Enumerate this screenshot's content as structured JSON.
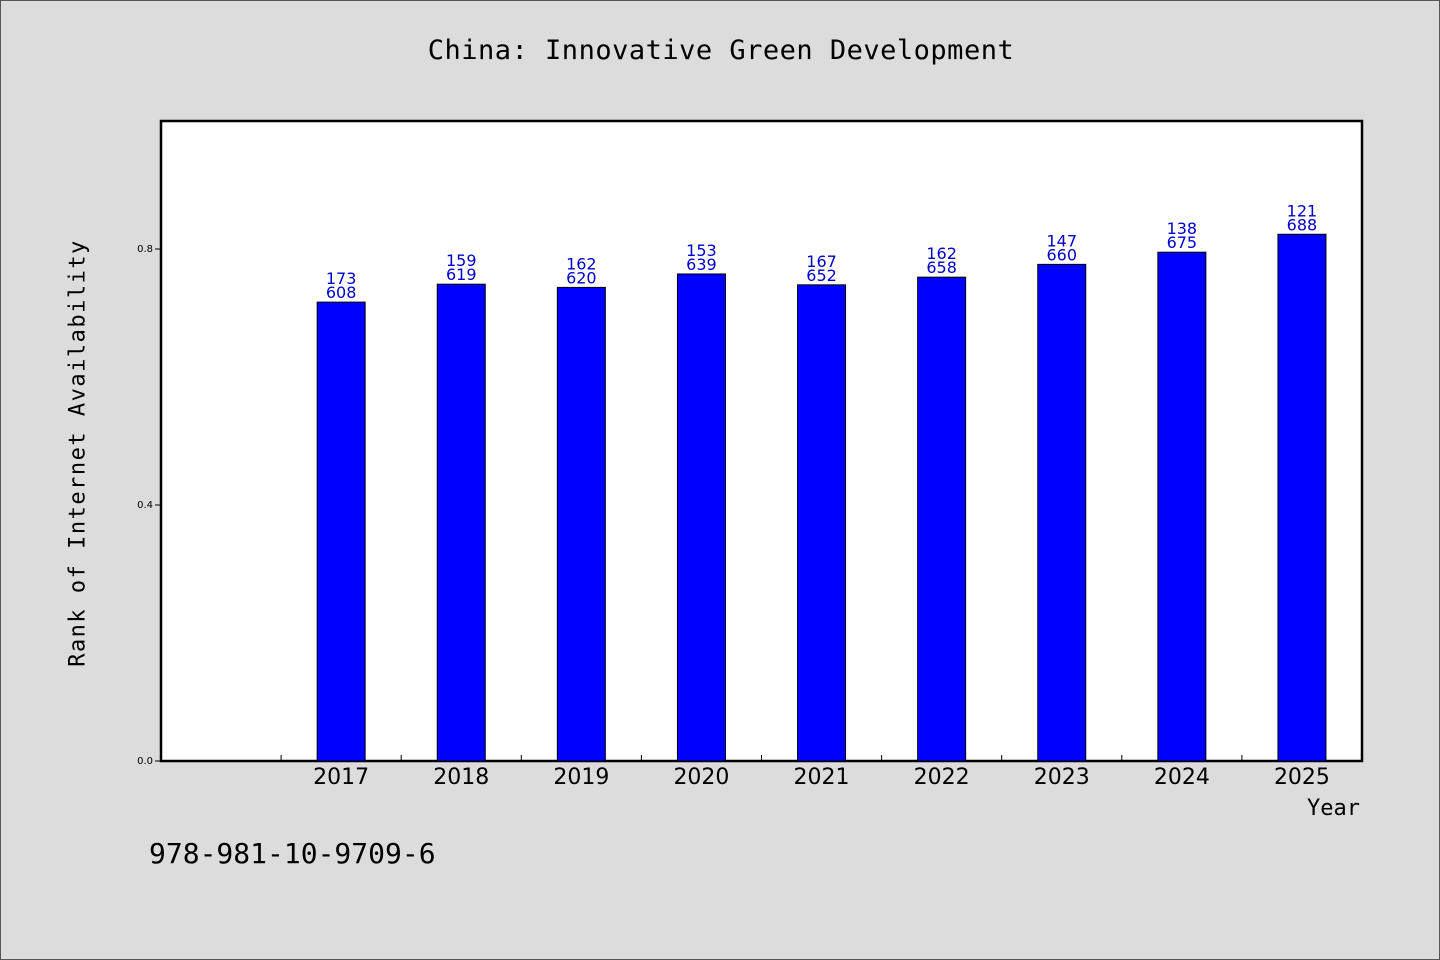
{
  "colors": {
    "background": "#dcdcdc",
    "plot_background": "#ffffff",
    "bar": "#0000ff",
    "label": "#0000cc"
  },
  "footer": {
    "identifier": "978-981-10-9709-6"
  },
  "chart_data": {
    "type": "bar",
    "title": "China: Innovative Green Development",
    "xlabel": "Year",
    "ylabel": "Rank of Internet Availability",
    "categories": [
      "",
      "2017",
      "2018",
      "2019",
      "2020",
      "2021",
      "2022",
      "2023",
      "2024",
      "2025"
    ],
    "values": [
      null,
      0.717,
      0.745,
      0.74,
      0.761,
      0.744,
      0.756,
      0.776,
      0.795,
      0.823
    ],
    "bar_labels": [
      null,
      [
        "173",
        "608"
      ],
      [
        "159",
        "619"
      ],
      [
        "162",
        "620"
      ],
      [
        "153",
        "639"
      ],
      [
        "167",
        "652"
      ],
      [
        "162",
        "658"
      ],
      [
        "147",
        "660"
      ],
      [
        "138",
        "675"
      ],
      [
        "121",
        "688"
      ]
    ],
    "ylim": [
      0,
      1.0
    ],
    "yticks": [
      0.0,
      0.4,
      0.8
    ],
    "ytick_labels": [
      "0.0",
      "0.4",
      "0.8"
    ],
    "grid": false,
    "legend": "none"
  }
}
